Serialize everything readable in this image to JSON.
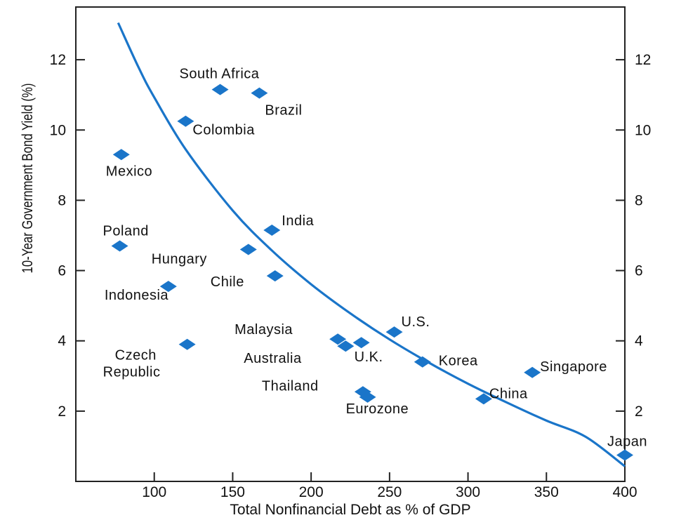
{
  "chart_data": {
    "type": "scatter",
    "title": "",
    "xlabel": "Total Nonfinancial Debt as % of GDP",
    "ylabel": "10-Year Government Bond Yield (%)",
    "xlim": [
      50,
      400
    ],
    "ylim": [
      0,
      13.5
    ],
    "x_ticks": [
      "100",
      "150",
      "200",
      "250",
      "300",
      "350",
      "400"
    ],
    "y_ticks": [
      "2",
      "4",
      "6",
      "8",
      "10",
      "12"
    ],
    "y_ticks_right": [
      "2",
      "4",
      "6",
      "8",
      "10",
      "12"
    ],
    "marker_color": "#1a75c9",
    "curve_color": "#1a75c9",
    "points": [
      {
        "label": "South Africa",
        "x": 142,
        "y": 11.15
      },
      {
        "label": "Brazil",
        "x": 167,
        "y": 11.05
      },
      {
        "label": "Colombia",
        "x": 120,
        "y": 10.25
      },
      {
        "label": "Mexico",
        "x": 79,
        "y": 9.3
      },
      {
        "label": "India",
        "x": 175,
        "y": 7.15
      },
      {
        "label": "Poland",
        "x": 78,
        "y": 6.7
      },
      {
        "label": "Hungary",
        "x": 160,
        "y": 6.6
      },
      {
        "label": "Chile",
        "x": 177,
        "y": 5.85
      },
      {
        "label": "Indonesia",
        "x": 109,
        "y": 5.55
      },
      {
        "label": "Czech Republic",
        "x": 121,
        "y": 3.9
      },
      {
        "label": "Malaysia",
        "x": 217,
        "y": 4.05
      },
      {
        "label": "Australia",
        "x": 222,
        "y": 3.85
      },
      {
        "label": "U.K.",
        "x": 232,
        "y": 3.95
      },
      {
        "label": "U.S.",
        "x": 253,
        "y": 4.25
      },
      {
        "label": "Korea",
        "x": 271,
        "y": 3.4
      },
      {
        "label": "Singapore",
        "x": 341,
        "y": 3.1
      },
      {
        "label": "Thailand",
        "x": 233,
        "y": 2.55
      },
      {
        "label": "Eurozone",
        "x": 236,
        "y": 2.4
      },
      {
        "label": "China",
        "x": 310,
        "y": 2.35
      },
      {
        "label": "Japan",
        "x": 400,
        "y": 0.75
      }
    ],
    "fit_curve": {
      "x": [
        77,
        90,
        100,
        120,
        150,
        175,
        200,
        225,
        250,
        275,
        300,
        325,
        350,
        375,
        400
      ],
      "y": [
        13.05,
        11.78,
        10.93,
        9.45,
        7.71,
        6.57,
        5.61,
        4.78,
        4.04,
        3.38,
        2.78,
        2.24,
        1.73,
        1.27,
        0.43
      ]
    }
  }
}
